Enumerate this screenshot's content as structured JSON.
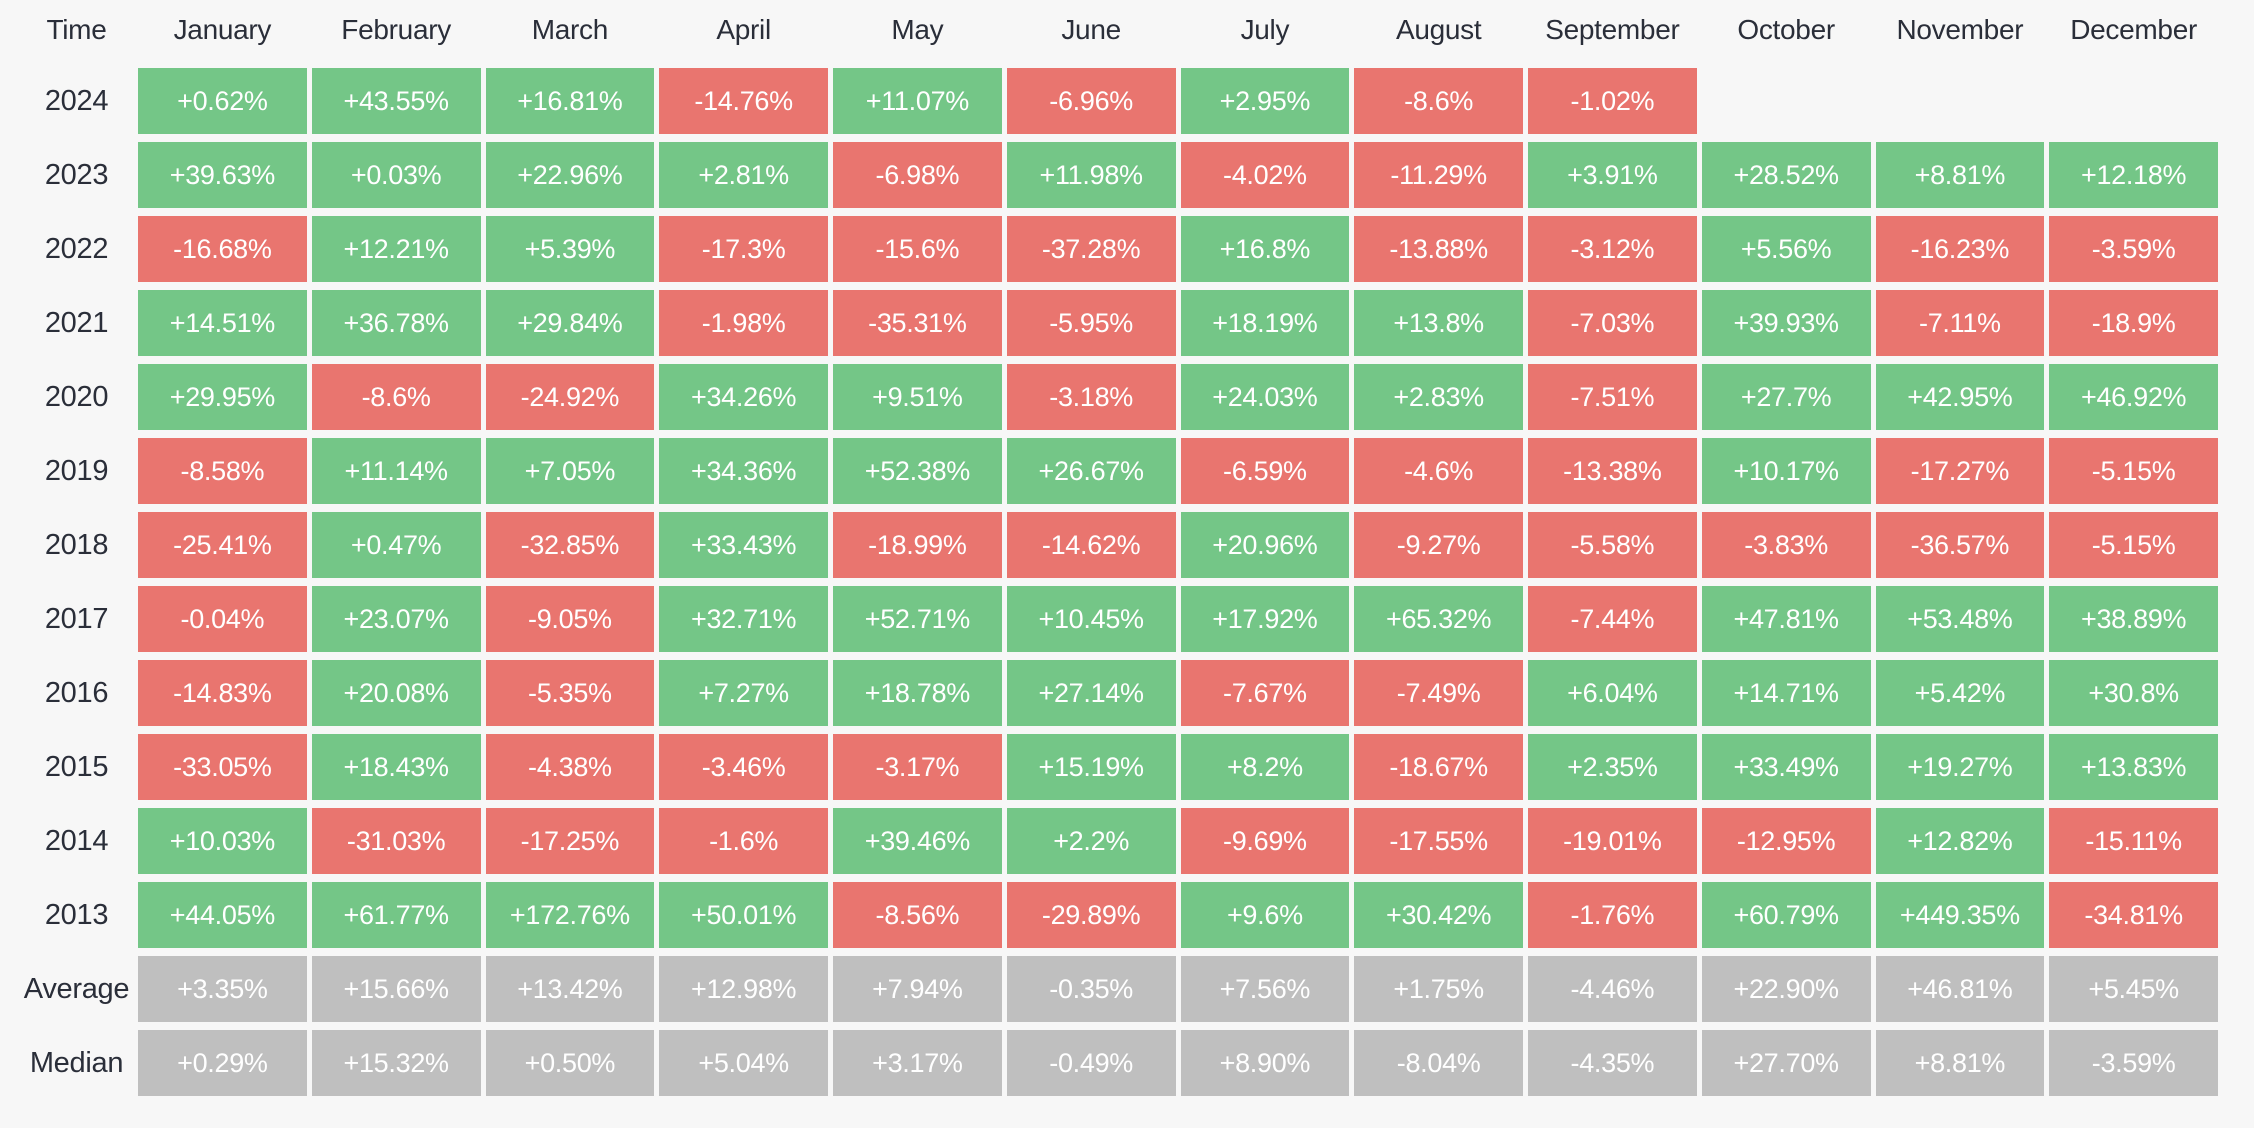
{
  "colors": {
    "positive": "#74c687",
    "negative": "#e9756f",
    "neutral_stat": "#bfbfbf",
    "background": "#f7f7f7",
    "header_text": "#2a2e39",
    "cell_text": "#ffffff"
  },
  "chart_data": {
    "type": "heatmap",
    "corner_label": "Time",
    "columns": [
      "January",
      "February",
      "March",
      "April",
      "May",
      "June",
      "July",
      "August",
      "September",
      "October",
      "November",
      "December"
    ],
    "rows": [
      {
        "label": "2024",
        "kind": "year",
        "values": [
          "+0.62%",
          "+43.55%",
          "+16.81%",
          "-14.76%",
          "+11.07%",
          "-6.96%",
          "+2.95%",
          "-8.6%",
          "-1.02%",
          "",
          "",
          ""
        ]
      },
      {
        "label": "2023",
        "kind": "year",
        "values": [
          "+39.63%",
          "+0.03%",
          "+22.96%",
          "+2.81%",
          "-6.98%",
          "+11.98%",
          "-4.02%",
          "-11.29%",
          "+3.91%",
          "+28.52%",
          "+8.81%",
          "+12.18%"
        ]
      },
      {
        "label": "2022",
        "kind": "year",
        "values": [
          "-16.68%",
          "+12.21%",
          "+5.39%",
          "-17.3%",
          "-15.6%",
          "-37.28%",
          "+16.8%",
          "-13.88%",
          "-3.12%",
          "+5.56%",
          "-16.23%",
          "-3.59%"
        ]
      },
      {
        "label": "2021",
        "kind": "year",
        "values": [
          "+14.51%",
          "+36.78%",
          "+29.84%",
          "-1.98%",
          "-35.31%",
          "-5.95%",
          "+18.19%",
          "+13.8%",
          "-7.03%",
          "+39.93%",
          "-7.11%",
          "-18.9%"
        ]
      },
      {
        "label": "2020",
        "kind": "year",
        "values": [
          "+29.95%",
          "-8.6%",
          "-24.92%",
          "+34.26%",
          "+9.51%",
          "-3.18%",
          "+24.03%",
          "+2.83%",
          "-7.51%",
          "+27.7%",
          "+42.95%",
          "+46.92%"
        ]
      },
      {
        "label": "2019",
        "kind": "year",
        "values": [
          "-8.58%",
          "+11.14%",
          "+7.05%",
          "+34.36%",
          "+52.38%",
          "+26.67%",
          "-6.59%",
          "-4.6%",
          "-13.38%",
          "+10.17%",
          "-17.27%",
          "-5.15%"
        ]
      },
      {
        "label": "2018",
        "kind": "year",
        "values": [
          "-25.41%",
          "+0.47%",
          "-32.85%",
          "+33.43%",
          "-18.99%",
          "-14.62%",
          "+20.96%",
          "-9.27%",
          "-5.58%",
          "-3.83%",
          "-36.57%",
          "-5.15%"
        ]
      },
      {
        "label": "2017",
        "kind": "year",
        "values": [
          "-0.04%",
          "+23.07%",
          "-9.05%",
          "+32.71%",
          "+52.71%",
          "+10.45%",
          "+17.92%",
          "+65.32%",
          "-7.44%",
          "+47.81%",
          "+53.48%",
          "+38.89%"
        ]
      },
      {
        "label": "2016",
        "kind": "year",
        "values": [
          "-14.83%",
          "+20.08%",
          "-5.35%",
          "+7.27%",
          "+18.78%",
          "+27.14%",
          "-7.67%",
          "-7.49%",
          "+6.04%",
          "+14.71%",
          "+5.42%",
          "+30.8%"
        ]
      },
      {
        "label": "2015",
        "kind": "year",
        "values": [
          "-33.05%",
          "+18.43%",
          "-4.38%",
          "-3.46%",
          "-3.17%",
          "+15.19%",
          "+8.2%",
          "-18.67%",
          "+2.35%",
          "+33.49%",
          "+19.27%",
          "+13.83%"
        ]
      },
      {
        "label": "2014",
        "kind": "year",
        "values": [
          "+10.03%",
          "-31.03%",
          "-17.25%",
          "-1.6%",
          "+39.46%",
          "+2.2%",
          "-9.69%",
          "-17.55%",
          "-19.01%",
          "-12.95%",
          "+12.82%",
          "-15.11%"
        ]
      },
      {
        "label": "2013",
        "kind": "year",
        "values": [
          "+44.05%",
          "+61.77%",
          "+172.76%",
          "+50.01%",
          "-8.56%",
          "-29.89%",
          "+9.6%",
          "+30.42%",
          "-1.76%",
          "+60.79%",
          "+449.35%",
          "-34.81%"
        ]
      },
      {
        "label": "Average",
        "kind": "stat",
        "values": [
          "+3.35%",
          "+15.66%",
          "+13.42%",
          "+12.98%",
          "+7.94%",
          "-0.35%",
          "+7.56%",
          "+1.75%",
          "-4.46%",
          "+22.90%",
          "+46.81%",
          "+5.45%"
        ]
      },
      {
        "label": "Median",
        "kind": "stat",
        "values": [
          "+0.29%",
          "+15.32%",
          "+0.50%",
          "+5.04%",
          "+3.17%",
          "-0.49%",
          "+8.90%",
          "-8.04%",
          "-4.35%",
          "+27.70%",
          "+8.81%",
          "-3.59%"
        ]
      }
    ],
    "color_rule": "value starting with + is green, with - is red; Average/Median rows are gray; blank cells transparent",
    "grid": "off",
    "legend_position": "none"
  }
}
